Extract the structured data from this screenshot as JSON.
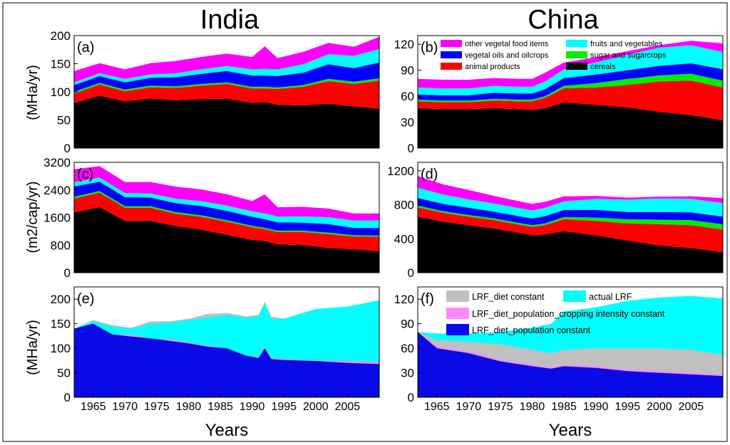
{
  "figure": {
    "col_titles": [
      "India",
      "China"
    ],
    "xlabel": "Years",
    "ylabels": [
      "(MHa/yr)",
      "(m2/cap/yr)",
      "(MHa/yr)"
    ],
    "x_ticks": [
      1965,
      1970,
      1975,
      1980,
      1985,
      1990,
      1995,
      2000,
      2005
    ],
    "x_range": [
      1962,
      2010
    ]
  },
  "colors": {
    "cereals": "#000000",
    "animal": "#ff0000",
    "sugar": "#00ee00",
    "oils": "#0000ff",
    "fruits": "#00ffff",
    "other": "#ff00ff",
    "blue": "#0a0ae6",
    "pink": "#ff88ff",
    "gray": "#c0c0c0",
    "cyan": "#00ffff"
  },
  "legends": {
    "b": [
      {
        "key": "other",
        "label": "other vegetal food items"
      },
      {
        "key": "fruits",
        "label": "fruits and vegetables"
      },
      {
        "key": "oils",
        "label": "vegetal oils and oilcrops"
      },
      {
        "key": "sugar",
        "label": "sugar and sugarcrops"
      },
      {
        "key": "animal",
        "label": "animal products"
      },
      {
        "key": "cereals",
        "label": "cereals"
      }
    ],
    "f": [
      {
        "key": "gray",
        "label": "LRF_diet constant"
      },
      {
        "key": "cyan",
        "label": "actual LRF"
      },
      {
        "key": "pink",
        "label": "LRF_diet_population_cropping intensity constant"
      },
      {
        "key": "blue",
        "label": "LRF_diet_population constant"
      }
    ]
  },
  "chart_data": [
    {
      "id": "a",
      "label": "(a)",
      "type": "area",
      "stacked": true,
      "title": "India",
      "ylabel": "(MHa/yr)",
      "ylim": [
        0,
        200
      ],
      "yticks": [
        0,
        50,
        100,
        150,
        200
      ],
      "x": [
        1962,
        1966,
        1970,
        1974,
        1978,
        1982,
        1986,
        1990,
        1992,
        1994,
        1998,
        2002,
        2006,
        2010
      ],
      "series": [
        {
          "name": "cereals",
          "color_key": "cereals",
          "values": [
            80,
            93,
            83,
            88,
            85,
            87,
            88,
            80,
            82,
            77,
            76,
            79,
            74,
            70
          ]
        },
        {
          "name": "animal products",
          "color_key": "animal",
          "values": [
            17,
            20,
            18,
            20,
            22,
            24,
            26,
            26,
            24,
            28,
            33,
            40,
            40,
            50
          ]
        },
        {
          "name": "sugar and sugarcrops",
          "color_key": "sugar",
          "values": [
            3,
            3,
            3,
            3,
            3,
            3,
            3,
            3,
            3,
            3,
            3,
            4,
            4,
            4
          ]
        },
        {
          "name": "vegetal oils and oilcrops",
          "color_key": "oils",
          "values": [
            12,
            12,
            13,
            14,
            16,
            18,
            20,
            20,
            20,
            20,
            22,
            26,
            24,
            28
          ]
        },
        {
          "name": "fruits and vegetables",
          "color_key": "fruits",
          "values": [
            5,
            5,
            6,
            6,
            7,
            8,
            9,
            11,
            12,
            12,
            15,
            18,
            22,
            24
          ]
        },
        {
          "name": "other vegetal food items",
          "color_key": "other",
          "values": [
            20,
            18,
            17,
            20,
            22,
            22,
            22,
            22,
            40,
            20,
            22,
            20,
            16,
            22
          ]
        }
      ]
    },
    {
      "id": "b",
      "label": "(b)",
      "type": "area",
      "stacked": true,
      "title": "China",
      "ylabel": "",
      "ylim": [
        0,
        130
      ],
      "yticks": [
        0,
        30,
        60,
        90,
        120
      ],
      "x": [
        1962,
        1966,
        1970,
        1974,
        1978,
        1980,
        1982,
        1985,
        1990,
        1995,
        2000,
        2005,
        2010
      ],
      "series": [
        {
          "name": "cereals",
          "color_key": "cereals",
          "values": [
            46,
            45,
            45,
            46,
            45,
            44,
            46,
            53,
            50,
            47,
            42,
            38,
            32
          ]
        },
        {
          "name": "animal products",
          "color_key": "animal",
          "values": [
            8,
            8,
            8,
            9,
            9,
            10,
            12,
            16,
            20,
            26,
            35,
            40,
            38
          ]
        },
        {
          "name": "sugar and sugarcrops",
          "color_key": "sugar",
          "values": [
            2,
            2,
            2,
            2,
            2,
            2,
            2,
            3,
            5,
            7,
            7,
            8,
            8
          ]
        },
        {
          "name": "vegetal oils and oilcrops",
          "color_key": "oils",
          "values": [
            6,
            6,
            6,
            7,
            7,
            7,
            8,
            9,
            10,
            10,
            11,
            12,
            13
          ]
        },
        {
          "name": "fruits and vegetables",
          "color_key": "fruits",
          "values": [
            8,
            8,
            8,
            8,
            8,
            8,
            9,
            10,
            14,
            18,
            21,
            21,
            20
          ]
        },
        {
          "name": "other vegetal food items",
          "color_key": "other",
          "values": [
            10,
            10,
            10,
            9,
            9,
            9,
            10,
            8,
            6,
            4,
            3,
            5,
            10
          ]
        }
      ]
    },
    {
      "id": "c",
      "label": "(c)",
      "type": "area",
      "stacked": true,
      "title": "",
      "ylabel": "(m2/cap/yr)",
      "ylim": [
        0,
        3200
      ],
      "yticks": [
        0,
        800,
        1600,
        2400,
        3200
      ],
      "x": [
        1962,
        1966,
        1970,
        1974,
        1978,
        1982,
        1986,
        1990,
        1992,
        1994,
        1998,
        2002,
        2006,
        2010
      ],
      "series": [
        {
          "name": "cereals",
          "color_key": "cereals",
          "values": [
            1750,
            1900,
            1500,
            1500,
            1350,
            1250,
            1100,
            950,
            920,
            820,
            800,
            720,
            680,
            620
          ]
        },
        {
          "name": "animal products",
          "color_key": "animal",
          "values": [
            400,
            420,
            380,
            380,
            360,
            370,
            380,
            370,
            340,
            360,
            380,
            400,
            370,
            420
          ]
        },
        {
          "name": "sugar and sugarcrops",
          "color_key": "sugar",
          "values": [
            50,
            50,
            50,
            50,
            45,
            45,
            45,
            40,
            40,
            40,
            40,
            40,
            38,
            38
          ]
        },
        {
          "name": "vegetal oils and oilcrops",
          "color_key": "oils",
          "values": [
            300,
            270,
            260,
            250,
            260,
            270,
            270,
            260,
            250,
            240,
            230,
            250,
            210,
            220
          ]
        },
        {
          "name": "fruits and vegetables",
          "color_key": "fruits",
          "values": [
            120,
            120,
            120,
            120,
            130,
            140,
            150,
            160,
            170,
            170,
            180,
            200,
            220,
            220
          ]
        },
        {
          "name": "other vegetal food items",
          "color_key": "other",
          "values": [
            380,
            330,
            320,
            330,
            350,
            340,
            330,
            300,
            550,
            270,
            280,
            250,
            200,
            200
          ]
        }
      ]
    },
    {
      "id": "d",
      "label": "(d)",
      "type": "area",
      "stacked": true,
      "title": "",
      "ylabel": "",
      "ylim": [
        0,
        1300
      ],
      "yticks": [
        0,
        400,
        800,
        1200
      ],
      "x": [
        1962,
        1966,
        1970,
        1974,
        1978,
        1980,
        1982,
        1985,
        1990,
        1995,
        2000,
        2005,
        2010
      ],
      "series": [
        {
          "name": "cereals",
          "color_key": "cereals",
          "values": [
            660,
            600,
            560,
            520,
            470,
            440,
            450,
            490,
            440,
            380,
            320,
            290,
            240
          ]
        },
        {
          "name": "animal products",
          "color_key": "animal",
          "values": [
            110,
            105,
            100,
            100,
            95,
            100,
            110,
            140,
            170,
            200,
            250,
            270,
            270
          ]
        },
        {
          "name": "sugar and sugarcrops",
          "color_key": "sugar",
          "values": [
            20,
            20,
            20,
            20,
            20,
            20,
            20,
            25,
            40,
            50,
            55,
            60,
            60
          ]
        },
        {
          "name": "vegetal oils and oilcrops",
          "color_key": "oils",
          "values": [
            90,
            85,
            85,
            80,
            80,
            80,
            85,
            85,
            90,
            85,
            90,
            90,
            90
          ]
        },
        {
          "name": "fruits and vegetables",
          "color_key": "fruits",
          "values": [
            120,
            110,
            100,
            95,
            95,
            95,
            100,
            100,
            130,
            145,
            160,
            160,
            160
          ]
        },
        {
          "name": "other vegetal food items",
          "color_key": "other",
          "values": [
            140,
            120,
            110,
            90,
            80,
            75,
            70,
            60,
            35,
            25,
            20,
            30,
            60
          ]
        }
      ]
    },
    {
      "id": "e",
      "label": "(e)",
      "type": "area",
      "stacked": false,
      "title": "",
      "ylabel": "(MHa/yr)",
      "ylim": [
        0,
        225
      ],
      "yticks": [
        0,
        50,
        100,
        150,
        200
      ],
      "x": [
        1962,
        1965,
        1968,
        1971,
        1974,
        1977,
        1980,
        1983,
        1986,
        1989,
        1991,
        1992,
        1993,
        1995,
        2000,
        2005,
        2010
      ],
      "series": [
        {
          "name": "LRF_diet constant",
          "color_key": "gray",
          "values": [
            140,
            158,
            147,
            142,
            155,
            155,
            160,
            170,
            172,
            165,
            168,
            195,
            165,
            160,
            165,
            165,
            170
          ]
        },
        {
          "name": "actual LRF",
          "color_key": "cyan",
          "values": [
            140,
            155,
            145,
            140,
            150,
            152,
            158,
            163,
            168,
            162,
            165,
            192,
            160,
            160,
            180,
            185,
            198
          ]
        },
        {
          "name": "LRF_diet_population_cropping intensity constant",
          "color_key": "pink",
          "values": [
            140,
            150,
            128,
            128,
            120,
            118,
            112,
            105,
            100,
            85,
            82,
            102,
            80,
            78,
            75,
            74,
            72
          ]
        },
        {
          "name": "LRF_diet_population constant",
          "color_key": "blue",
          "values": [
            140,
            150,
            128,
            124,
            120,
            115,
            110,
            103,
            100,
            85,
            80,
            100,
            78,
            76,
            74,
            70,
            68
          ]
        }
      ]
    },
    {
      "id": "f",
      "label": "(f)",
      "type": "area",
      "stacked": false,
      "title": "",
      "ylabel": "",
      "ylim": [
        0,
        135
      ],
      "yticks": [
        0,
        30,
        60,
        90,
        120
      ],
      "x": [
        1962,
        1965,
        1970,
        1975,
        1980,
        1983,
        1985,
        1990,
        1995,
        2000,
        2005,
        2010
      ],
      "series": [
        {
          "name": "actual LRF",
          "color_key": "cyan",
          "values": [
            80,
            78,
            78,
            80,
            85,
            90,
            105,
            110,
            118,
            122,
            124,
            121
          ]
        },
        {
          "name": "LRF_diet constant",
          "color_key": "gray",
          "values": [
            80,
            70,
            68,
            65,
            58,
            54,
            58,
            60,
            60,
            60,
            58,
            52
          ]
        },
        {
          "name": "LRF_diet_population_cropping intensity constant",
          "color_key": "pink",
          "values": [
            80,
            62,
            56,
            46,
            40,
            36,
            40,
            38,
            34,
            32,
            30,
            28
          ]
        },
        {
          "name": "LRF_diet_population constant",
          "color_key": "blue",
          "values": [
            80,
            60,
            54,
            44,
            38,
            35,
            38,
            36,
            32,
            30,
            28,
            26
          ]
        }
      ]
    }
  ]
}
